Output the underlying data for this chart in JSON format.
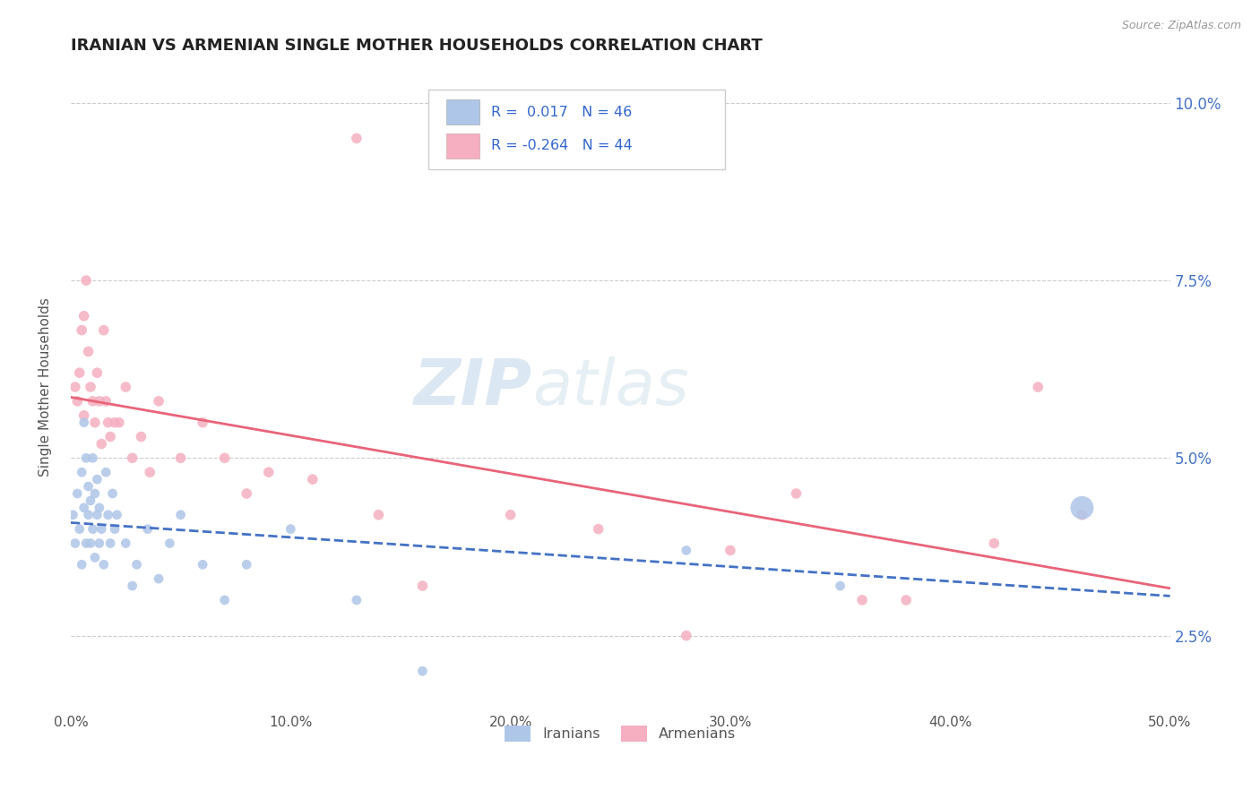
{
  "title": "IRANIAN VS ARMENIAN SINGLE MOTHER HOUSEHOLDS CORRELATION CHART",
  "source": "Source: ZipAtlas.com",
  "ylabel": "Single Mother Households",
  "xmin": 0.0,
  "xmax": 0.5,
  "ymin": 0.015,
  "ymax": 0.105,
  "yticks": [
    0.025,
    0.05,
    0.075,
    0.1
  ],
  "ytick_labels": [
    "2.5%",
    "5.0%",
    "7.5%",
    "10.0%"
  ],
  "xticks": [
    0.0,
    0.1,
    0.2,
    0.3,
    0.4,
    0.5
  ],
  "xtick_labels": [
    "0.0%",
    "10.0%",
    "20.0%",
    "30.0%",
    "40.0%",
    "50.0%"
  ],
  "iranian_color": "#aec6e8",
  "armenian_color": "#f5afc0",
  "trend_iranian_color": "#4472c4",
  "trend_armenian_color": "#e8647a",
  "R_iranian": 0.017,
  "N_iranian": 46,
  "R_armenian": -0.264,
  "N_armenian": 44,
  "watermark_zip": "ZIP",
  "watermark_atlas": "atlas",
  "legend_label_iranian": "Iranians",
  "legend_label_armenian": "Armenians",
  "iranian_x": [
    0.001,
    0.002,
    0.003,
    0.004,
    0.005,
    0.005,
    0.006,
    0.006,
    0.007,
    0.007,
    0.008,
    0.008,
    0.009,
    0.009,
    0.01,
    0.01,
    0.011,
    0.011,
    0.012,
    0.012,
    0.013,
    0.013,
    0.014,
    0.015,
    0.016,
    0.017,
    0.018,
    0.019,
    0.02,
    0.021,
    0.025,
    0.028,
    0.03,
    0.035,
    0.04,
    0.045,
    0.05,
    0.06,
    0.07,
    0.08,
    0.1,
    0.13,
    0.16,
    0.28,
    0.35,
    0.46
  ],
  "iranian_y": [
    0.042,
    0.038,
    0.045,
    0.04,
    0.048,
    0.035,
    0.055,
    0.043,
    0.05,
    0.038,
    0.046,
    0.042,
    0.038,
    0.044,
    0.04,
    0.05,
    0.036,
    0.045,
    0.042,
    0.047,
    0.043,
    0.038,
    0.04,
    0.035,
    0.048,
    0.042,
    0.038,
    0.045,
    0.04,
    0.042,
    0.038,
    0.032,
    0.035,
    0.04,
    0.033,
    0.038,
    0.042,
    0.035,
    0.03,
    0.035,
    0.04,
    0.03,
    0.02,
    0.037,
    0.032,
    0.043
  ],
  "iranian_sizes": [
    60,
    60,
    60,
    60,
    60,
    60,
    60,
    60,
    60,
    60,
    60,
    60,
    60,
    60,
    60,
    60,
    60,
    60,
    60,
    60,
    60,
    60,
    60,
    60,
    60,
    60,
    60,
    60,
    60,
    60,
    60,
    60,
    60,
    60,
    60,
    60,
    60,
    60,
    60,
    60,
    60,
    60,
    60,
    60,
    60,
    350
  ],
  "armenian_x": [
    0.002,
    0.003,
    0.004,
    0.005,
    0.006,
    0.006,
    0.007,
    0.008,
    0.009,
    0.01,
    0.011,
    0.012,
    0.013,
    0.014,
    0.015,
    0.016,
    0.017,
    0.018,
    0.02,
    0.022,
    0.025,
    0.028,
    0.032,
    0.036,
    0.04,
    0.05,
    0.06,
    0.07,
    0.08,
    0.09,
    0.11,
    0.14,
    0.16,
    0.2,
    0.24,
    0.28,
    0.3,
    0.33,
    0.36,
    0.38,
    0.42,
    0.44,
    0.46,
    0.13
  ],
  "armenian_y": [
    0.06,
    0.058,
    0.062,
    0.068,
    0.056,
    0.07,
    0.075,
    0.065,
    0.06,
    0.058,
    0.055,
    0.062,
    0.058,
    0.052,
    0.068,
    0.058,
    0.055,
    0.053,
    0.055,
    0.055,
    0.06,
    0.05,
    0.053,
    0.048,
    0.058,
    0.05,
    0.055,
    0.05,
    0.045,
    0.048,
    0.047,
    0.042,
    0.032,
    0.042,
    0.04,
    0.025,
    0.037,
    0.045,
    0.03,
    0.03,
    0.038,
    0.06,
    0.042,
    0.095
  ],
  "title_color": "#222222",
  "axis_color": "#555555",
  "grid_color": "#cccccc",
  "background_color": "#ffffff",
  "tick_label_color_right": "#4472c4"
}
